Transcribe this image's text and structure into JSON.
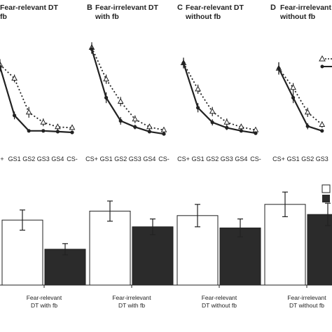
{
  "figure": {
    "panels": [
      {
        "letter": "",
        "title_line1": "Fear-relevant DT",
        "title_line2": "fb"
      },
      {
        "letter": "B",
        "title_line1": "Fear-irrelevant DT",
        "title_line2": "with fb"
      },
      {
        "letter": "C",
        "title_line1": "Fear-relevant DT",
        "title_line2": "without fb"
      },
      {
        "letter": "D",
        "title_line1": "Fear-irrelevant DT",
        "title_line2": "without fb"
      }
    ]
  },
  "chart_data": [
    {
      "type": "line",
      "panel": "A",
      "categories": [
        "CS+",
        "GS1",
        "GS2",
        "GS3",
        "GS4",
        "CS-"
      ],
      "visible_tick_labels": [
        "S+",
        "GS1",
        "GS2",
        "GS3",
        "GS4",
        "CS-"
      ],
      "series": [
        {
          "style": "dotted-open-triangle",
          "values": [
            0.98,
            0.8,
            0.36,
            0.23,
            0.17,
            0.16
          ],
          "errors": [
            0.07,
            0.05,
            0.07,
            0.05,
            0.04,
            0.03
          ]
        },
        {
          "style": "solid-filled-circle",
          "values": [
            0.95,
            0.32,
            0.12,
            0.12,
            0.11,
            0.1
          ],
          "errors": [
            0.06,
            0.05,
            0.02,
            0.02,
            0.02,
            0.02
          ]
        }
      ]
    },
    {
      "type": "line",
      "panel": "B",
      "categories": [
        "CS+",
        "GS1",
        "GS2",
        "GS3",
        "GS4",
        "CS-"
      ],
      "visible_tick_labels": [
        "CS+",
        "GS1",
        "GS2",
        "GS3",
        "GS4",
        "CS-"
      ],
      "series": [
        {
          "style": "dotted-open-triangle",
          "values": [
            1.2,
            0.79,
            0.5,
            0.27,
            0.17,
            0.13
          ],
          "errors": [
            0.07,
            0.06,
            0.06,
            0.05,
            0.04,
            0.03
          ]
        },
        {
          "style": "solid-filled-circle",
          "values": [
            1.18,
            0.55,
            0.25,
            0.17,
            0.11,
            0.08
          ],
          "errors": [
            0.06,
            0.07,
            0.05,
            0.03,
            0.02,
            0.02
          ]
        }
      ]
    },
    {
      "type": "line",
      "panel": "C",
      "categories": [
        "CS+",
        "GS1",
        "GS2",
        "GS3",
        "GS4",
        "CS-"
      ],
      "visible_tick_labels": [
        "CS+",
        "GS1",
        "GS2",
        "GS3",
        "GS4",
        "CS-"
      ],
      "series": [
        {
          "style": "dotted-open-triangle",
          "values": [
            1.0,
            0.66,
            0.37,
            0.23,
            0.17,
            0.13
          ],
          "errors": [
            0.07,
            0.06,
            0.06,
            0.05,
            0.04,
            0.03
          ]
        },
        {
          "style": "solid-filled-circle",
          "values": [
            1.0,
            0.42,
            0.23,
            0.16,
            0.12,
            0.09
          ],
          "errors": [
            0.06,
            0.06,
            0.04,
            0.03,
            0.02,
            0.02
          ]
        }
      ]
    },
    {
      "type": "line",
      "panel": "D",
      "categories": [
        "CS+",
        "GS1",
        "GS2",
        "GS3"
      ],
      "visible_tick_labels": [
        "CS+",
        "GS1",
        "GS2",
        "GS3",
        "G"
      ],
      "series": [
        {
          "style": "dotted-open-triangle",
          "values": [
            0.93,
            0.68,
            0.36,
            0.2
          ],
          "errors": [
            0.08,
            0.06,
            0.06,
            0.04
          ]
        },
        {
          "style": "solid-filled-circle",
          "values": [
            0.93,
            0.55,
            0.18,
            0.12
          ],
          "errors": [
            0.08,
            0.07,
            0.04,
            0.02
          ]
        }
      ]
    },
    {
      "type": "bar",
      "panel": "bottom",
      "categories": [
        {
          "line1": "Fear-relevant",
          "line2": "DT with fb"
        },
        {
          "line1": "Fear-irrelevant",
          "line2": "DT with fb"
        },
        {
          "line1": "Fear-relevant",
          "line2": "DT without fb"
        },
        {
          "line1": "Fear-irrelevant",
          "line2": "DT without fb"
        }
      ],
      "series": [
        {
          "fill": "#ffffff",
          "values": [
            0.58,
            0.66,
            0.62,
            0.72
          ],
          "errors": [
            0.09,
            0.09,
            0.1,
            0.11
          ]
        },
        {
          "fill": "#2b2b2b",
          "values": [
            0.32,
            0.52,
            0.51,
            0.63
          ],
          "errors": [
            0.05,
            0.07,
            0.08,
            0.1
          ]
        }
      ],
      "ylim": [
        0,
        1.0
      ]
    }
  ],
  "colors": {
    "line": "#222222",
    "white_bar": "#ffffff",
    "dark_bar": "#2b2b2b"
  }
}
